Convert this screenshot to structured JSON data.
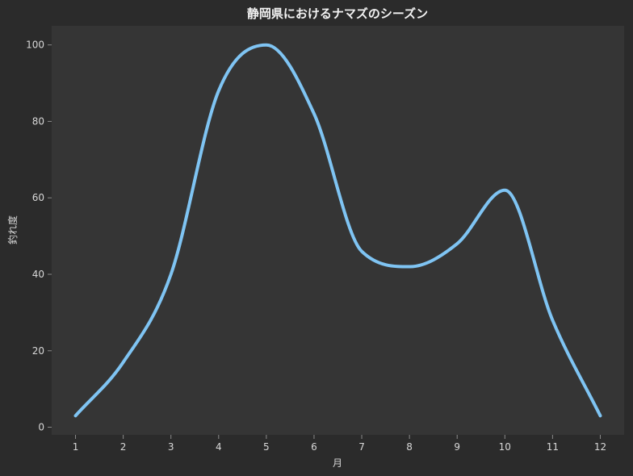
{
  "chart_data": {
    "type": "line",
    "title": "静岡県におけるナマズのシーズン",
    "xlabel": "月",
    "ylabel": "釣れ度",
    "x": [
      1,
      2,
      3,
      4,
      5,
      6,
      7,
      8,
      9,
      10,
      11,
      12
    ],
    "xticks": [
      "1",
      "2",
      "3",
      "4",
      "5",
      "6",
      "7",
      "8",
      "9",
      "10",
      "11",
      "12"
    ],
    "yticks": [
      "0",
      "20",
      "40",
      "60",
      "80",
      "100"
    ],
    "xlim": [
      0.5,
      12.5
    ],
    "ylim": [
      -2,
      105
    ],
    "grid": false,
    "series": [
      {
        "values": [
          3,
          17,
          40,
          88,
          100,
          82,
          46,
          42,
          48,
          62,
          28,
          3
        ]
      }
    ],
    "colors": {
      "figure_background": "#2b2b2b",
      "plot_background": "#353535",
      "line": "#7fc4f3",
      "text": "#d8d8d8",
      "title": "#f2f2f2",
      "axis": "#8a8a8a"
    }
  }
}
